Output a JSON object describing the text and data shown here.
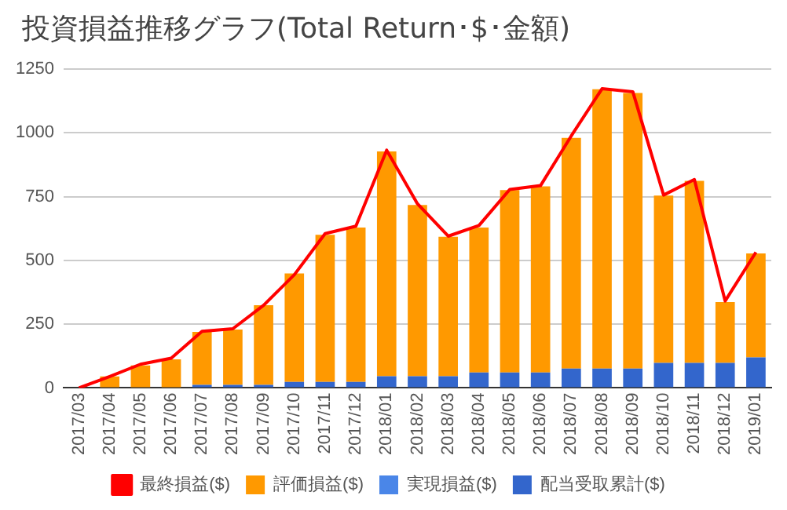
{
  "chart_data": {
    "type": "bar",
    "stacked": true,
    "title": "投資損益推移グラフ(Total Return･$･金額)",
    "categories": [
      "2017/03",
      "2017/04",
      "2017/05",
      "2017/06",
      "2017/07",
      "2017/08",
      "2017/09",
      "2017/10",
      "2017/11",
      "2017/12",
      "2018/01",
      "2018/02",
      "2018/03",
      "2018/04",
      "2018/05",
      "2018/06",
      "2018/07",
      "2018/08",
      "2018/09",
      "2018/10",
      "2018/11",
      "2018/12",
      "2019/01"
    ],
    "series": [
      {
        "name": "配当受取累計($)",
        "color": "#3366cc",
        "values": [
          0,
          0,
          0,
          0,
          12,
          12,
          12,
          24,
          24,
          24,
          46,
          46,
          46,
          61,
          61,
          61,
          76,
          76,
          76,
          98,
          98,
          98,
          120
        ]
      },
      {
        "name": "実現損益($)",
        "color": "#4a86e8",
        "values": [
          0,
          0,
          0,
          0,
          0,
          0,
          0,
          0,
          0,
          0,
          0,
          0,
          0,
          0,
          0,
          0,
          0,
          0,
          0,
          0,
          0,
          0,
          0
        ]
      },
      {
        "name": "評価損益($)",
        "color": "#ff9900",
        "values": [
          0,
          45,
          88,
          112,
          208,
          217,
          312,
          425,
          576,
          605,
          881,
          671,
          547,
          568,
          715,
          729,
          904,
          1095,
          1080,
          656,
          714,
          239,
          407
        ]
      },
      {
        "name": "最終損益($)",
        "type": "line",
        "color": "#ff0000",
        "values": [
          0,
          45,
          93,
          117,
          222,
          232,
          324,
          444,
          605,
          634,
          932,
          722,
          595,
          637,
          778,
          793,
          988,
          1173,
          1161,
          756,
          817,
          341,
          532
        ]
      }
    ],
    "ylim": [
      0,
      1250
    ],
    "yticks": [
      0,
      250,
      500,
      750,
      1000,
      1250
    ],
    "grid": "y",
    "legend": "bottom",
    "marker": "none"
  }
}
